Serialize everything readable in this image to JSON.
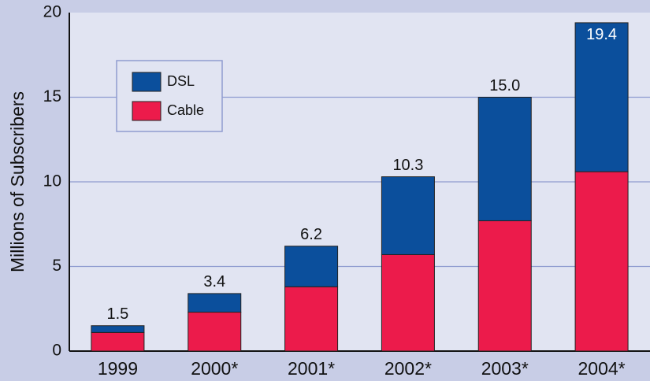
{
  "chart_data": {
    "type": "stacked_bar",
    "y_label": "Millions of Subscribers",
    "categories": [
      "1999",
      "2000*",
      "2001*",
      "2002*",
      "2003*",
      "2004*"
    ],
    "series": [
      {
        "name": "Cable",
        "color": "#ec1b4b",
        "values": [
          1.1,
          2.3,
          3.8,
          5.7,
          7.7,
          10.6
        ]
      },
      {
        "name": "DSL",
        "color": "#0b4f9c",
        "values": [
          0.4,
          1.1,
          2.4,
          4.6,
          7.3,
          8.8
        ]
      }
    ],
    "totals": {
      "values": [
        1.5,
        3.4,
        6.2,
        10.3,
        15.0,
        19.4
      ],
      "value_labels": [
        "1.5",
        "3.4",
        "6.2",
        "10.3",
        "15.0",
        "19.4"
      ]
    },
    "ylim": [
      0,
      20
    ],
    "yticks": [
      0,
      5,
      10,
      15,
      20
    ],
    "grid": true,
    "legend": "upper left"
  }
}
